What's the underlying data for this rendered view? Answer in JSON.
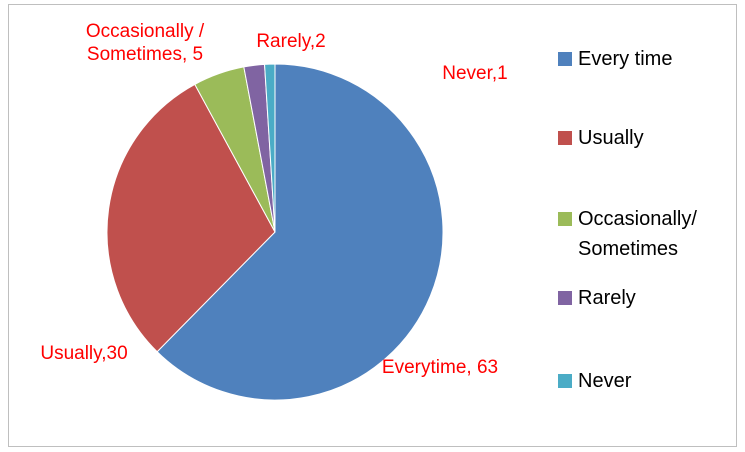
{
  "chart_data": {
    "type": "pie",
    "categories": [
      "Every time",
      "Usually",
      "Occasionally/ Sometimes",
      "Rarely",
      "Never"
    ],
    "values": [
      63,
      30,
      5,
      2,
      1
    ],
    "value_labels": [
      "Everytime, 63",
      "Usually,30",
      "Occasionally / Sometimes, 5",
      "Rarely,2",
      "Never,1"
    ],
    "colors": [
      "#4f81bd",
      "#c0504d",
      "#9bbb59",
      "#8064a2",
      "#4bacc6"
    ],
    "legend": "right"
  }
}
